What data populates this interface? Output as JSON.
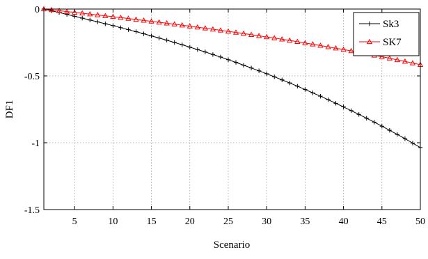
{
  "chart_data": {
    "type": "line",
    "title": "",
    "xlabel": "Scenario",
    "ylabel": "DF1",
    "xlim": [
      1,
      50
    ],
    "ylim": [
      -1.5,
      0
    ],
    "xticks": [
      5,
      10,
      15,
      20,
      25,
      30,
      35,
      40,
      45,
      50
    ],
    "yticks": [
      0,
      -0.5,
      -1,
      -1.5
    ],
    "ytick_labels": [
      "0",
      "-0.5",
      "-1",
      "-1.5"
    ],
    "grid": true,
    "legend_position": "top-right",
    "x": [
      1,
      2,
      3,
      4,
      5,
      6,
      7,
      8,
      9,
      10,
      11,
      12,
      13,
      14,
      15,
      16,
      17,
      18,
      19,
      20,
      21,
      22,
      23,
      24,
      25,
      26,
      27,
      28,
      29,
      30,
      31,
      32,
      33,
      34,
      35,
      36,
      37,
      38,
      39,
      40,
      41,
      42,
      43,
      44,
      45,
      46,
      47,
      48,
      49,
      50
    ],
    "series": [
      {
        "name": "Sk3",
        "color": "#000000",
        "marker": "plus",
        "values": [
          0,
          -0.013,
          -0.026,
          -0.04,
          -0.054,
          -0.068,
          -0.082,
          -0.096,
          -0.11,
          -0.124,
          -0.139,
          -0.154,
          -0.169,
          -0.185,
          -0.201,
          -0.217,
          -0.233,
          -0.25,
          -0.267,
          -0.285,
          -0.303,
          -0.321,
          -0.34,
          -0.359,
          -0.379,
          -0.399,
          -0.42,
          -0.441,
          -0.462,
          -0.484,
          -0.507,
          -0.53,
          -0.553,
          -0.577,
          -0.602,
          -0.627,
          -0.652,
          -0.678,
          -0.705,
          -0.732,
          -0.76,
          -0.788,
          -0.817,
          -0.846,
          -0.876,
          -0.907,
          -0.938,
          -0.97,
          -1.003,
          -1.036
        ]
      },
      {
        "name": "SK7",
        "color": "#ff0000",
        "marker": "triangle",
        "values": [
          0,
          -0.006,
          -0.012,
          -0.019,
          -0.025,
          -0.031,
          -0.038,
          -0.044,
          -0.051,
          -0.057,
          -0.064,
          -0.071,
          -0.078,
          -0.085,
          -0.092,
          -0.099,
          -0.106,
          -0.113,
          -0.121,
          -0.128,
          -0.136,
          -0.143,
          -0.151,
          -0.159,
          -0.167,
          -0.175,
          -0.183,
          -0.192,
          -0.2,
          -0.209,
          -0.217,
          -0.226,
          -0.235,
          -0.244,
          -0.254,
          -0.263,
          -0.273,
          -0.283,
          -0.293,
          -0.303,
          -0.313,
          -0.324,
          -0.335,
          -0.346,
          -0.357,
          -0.368,
          -0.38,
          -0.392,
          -0.404,
          -0.416
        ]
      }
    ]
  }
}
